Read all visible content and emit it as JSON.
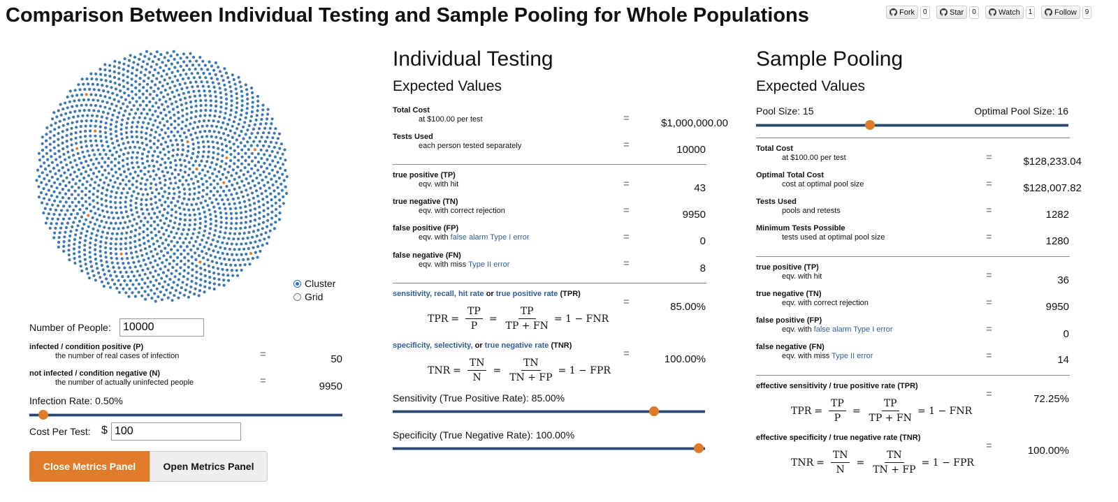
{
  "page_title": "Comparison Between Individual Testing and Sample Pooling for Whole Populations",
  "github": [
    {
      "label": "Fork",
      "count": "0"
    },
    {
      "label": "Star",
      "count": "0"
    },
    {
      "label": "Watch",
      "count": "1"
    },
    {
      "label": "Follow",
      "count": "9"
    }
  ],
  "colors": {
    "uninfected": "#3a78b5",
    "infected": "#e07b2a",
    "accent": "#e07b2a",
    "link": "#2f5f9c"
  },
  "population": {
    "infected_count": 50,
    "view_options": [
      {
        "label": "Cluster",
        "checked": true
      },
      {
        "label": "Grid",
        "checked": false
      }
    ],
    "number_of_people_label": "Number of People:",
    "number_of_people_value": "10000",
    "infected_label": "infected / condition positive (P)",
    "infected_desc": "the number of real cases of infection",
    "infected_value": "50",
    "not_infected_label": "not infected / condition negative (N)",
    "not_infected_desc": "the number of actually uninfected people",
    "not_infected_value": "9950",
    "infection_rate_label": "Infection Rate: 0.50%",
    "infection_rate_fraction": 0.005,
    "cost_per_test_label": "Cost Per Test:",
    "currency_symbol": "$",
    "cost_per_test_value": "100",
    "close_metrics": "Close Metrics Panel",
    "open_metrics": "Open Metrics Panel"
  },
  "individual": {
    "title": "Individual Testing",
    "subtitle": "Expected Values",
    "total_cost_label": "Total Cost",
    "total_cost_desc": "at $100.00 per test",
    "total_cost_value": "$1,000,000.00",
    "tests_used_label": "Tests Used",
    "tests_used_desc": "each person tested separately",
    "tests_used_value": "10000",
    "tp_label": "true positive (TP)",
    "tp_desc": "eqv. with hit",
    "tp_value": "43",
    "tn_label": "true negative (TN)",
    "tn_desc": "eqv. with correct rejection",
    "tn_value": "9950",
    "fp_label": "false positive (FP)",
    "fp_desc_prefix": "eqv. with",
    "fp_desc_link": "false alarm Type I error",
    "fp_value": "0",
    "fn_label": "false negative (FN)",
    "fn_desc_prefix": "eqv. with miss",
    "fn_desc_link": "Type II error",
    "fn_value": "8",
    "tpr_link": "sensitivity, recall, hit rate",
    "tpr_or": "or",
    "tpr_link2": "true positive rate",
    "tpr_abbr": "(TPR)",
    "tpr_value": "85.00%",
    "tnr_link": "specificity, selectivity,",
    "tnr_or": "or",
    "tnr_link2": "true negative rate",
    "tnr_abbr": "(TNR)",
    "tnr_value": "100.00%",
    "sensitivity_label": "Sensitivity (True Positive Rate): 85.00%",
    "sensitivity_fraction": 0.85,
    "specificity_label": "Specificity (True Negative Rate): 100.00%",
    "specificity_fraction": 1.0
  },
  "pooling": {
    "title": "Sample Pooling",
    "subtitle": "Expected Values",
    "pool_size_label": "Pool Size: 15",
    "optimal_pool_size_label": "Optimal Pool Size: 16",
    "pool_size": 15,
    "total_cost_label": "Total Cost",
    "total_cost_desc": "at $100.00 per test",
    "total_cost_value": "$128,233.04",
    "optimal_cost_label": "Optimal Total Cost",
    "optimal_cost_desc": "cost at optimal pool size",
    "optimal_cost_value": "$128,007.82",
    "tests_used_label": "Tests Used",
    "tests_used_desc": "pools and retests",
    "tests_used_value": "1282",
    "min_tests_label": "Minimum Tests Possible",
    "min_tests_desc": "tests used at optimal pool size",
    "min_tests_value": "1280",
    "tp_label": "true positive (TP)",
    "tp_desc": "eqv. with hit",
    "tp_value": "36",
    "tn_label": "true negative (TN)",
    "tn_desc": "eqv. with correct rejection",
    "tn_value": "9950",
    "fp_label": "false positive (FP)",
    "fp_desc_prefix": "eqv. with",
    "fp_desc_link": "false alarm Type I error",
    "fp_value": "0",
    "fn_label": "false negative (FN)",
    "fn_desc_prefix": "eqv. with miss",
    "fn_desc_link": "Type II error",
    "fn_value": "14",
    "tpr_label": "effective sensitivity / true positive rate (TPR)",
    "tpr_value": "72.25%",
    "tnr_label": "effective specificity / true negative rate (TNR)",
    "tnr_value": "100.00%"
  },
  "math": {
    "tpr_lhs": "TPR",
    "tp": "TP",
    "p": "P",
    "tp_fn": "TP + FN",
    "tpr_rhs": "= 1 − FNR",
    "tnr_lhs": "TNR",
    "tn": "TN",
    "n": "N",
    "tn_fp": "TN + FP",
    "tnr_rhs": "= 1 − FPR",
    "eq": "=",
    "eq_sign": "="
  }
}
